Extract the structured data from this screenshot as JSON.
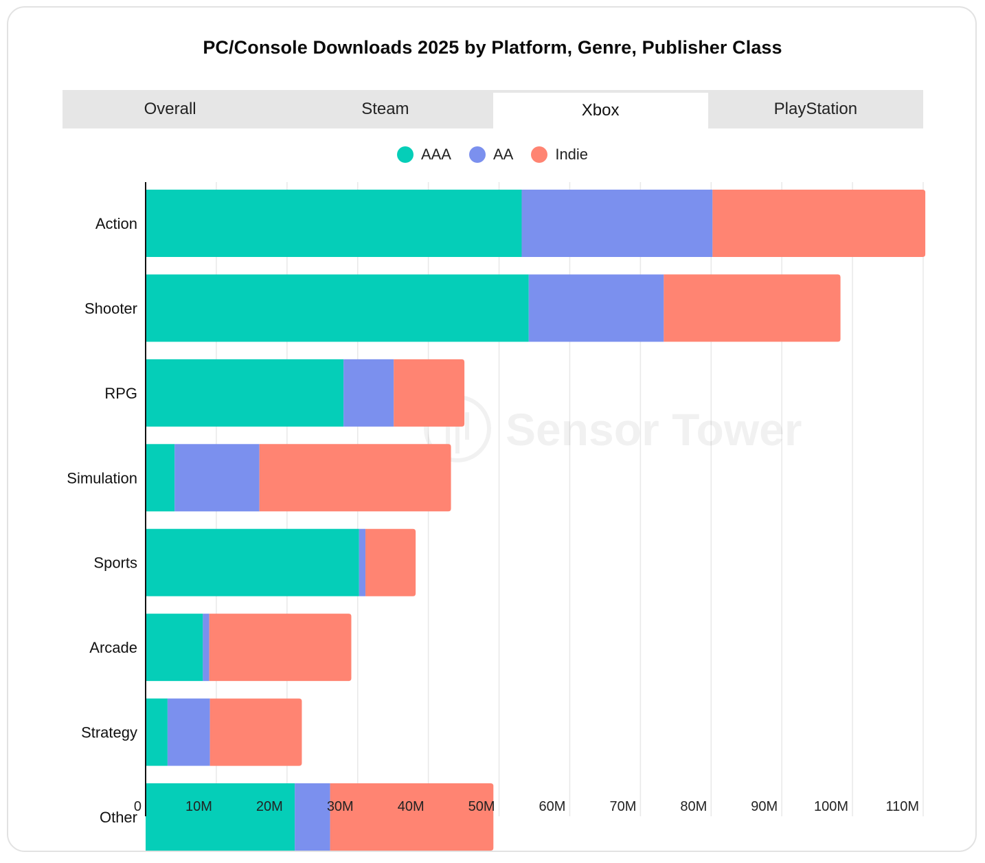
{
  "title": "PC/Console Downloads 2025 by Platform, Genre, Publisher Class",
  "tabs": [
    {
      "label": "Overall",
      "active": false
    },
    {
      "label": "Steam",
      "active": false
    },
    {
      "label": "Xbox",
      "active": true
    },
    {
      "label": "PlayStation",
      "active": false
    }
  ],
  "watermark": "Sensor Tower",
  "colors": {
    "AAA": "#05ceb8",
    "AA": "#7b90ee",
    "Indie": "#ff8472",
    "grid": "#e8e8e8",
    "axis": "#111111"
  },
  "chart_data": {
    "type": "bar",
    "orientation": "horizontal",
    "stacked": true,
    "categories": [
      "Action",
      "Shooter",
      "RPG",
      "Simulation",
      "Sports",
      "Arcade",
      "Strategy",
      "Other"
    ],
    "series": [
      {
        "name": "AAA",
        "values": [
          53.2,
          54.2,
          28.0,
          4.1,
          30.2,
          8.1,
          3.1,
          21.1
        ]
      },
      {
        "name": "AA",
        "values": [
          27.0,
          19.1,
          7.1,
          12.0,
          0.9,
          0.9,
          6.0,
          5.0
        ]
      },
      {
        "name": "Indie",
        "values": [
          30.1,
          25.0,
          10.0,
          27.1,
          7.1,
          20.1,
          13.0,
          23.1
        ]
      }
    ],
    "xlim": [
      0,
      110
    ],
    "xticks": [
      "0",
      "10M",
      "20M",
      "30M",
      "40M",
      "50M",
      "60M",
      "70M",
      "80M",
      "90M",
      "100M",
      "110M"
    ],
    "xlabel": "",
    "ylabel": "",
    "legend": "top-center",
    "grid": true
  }
}
